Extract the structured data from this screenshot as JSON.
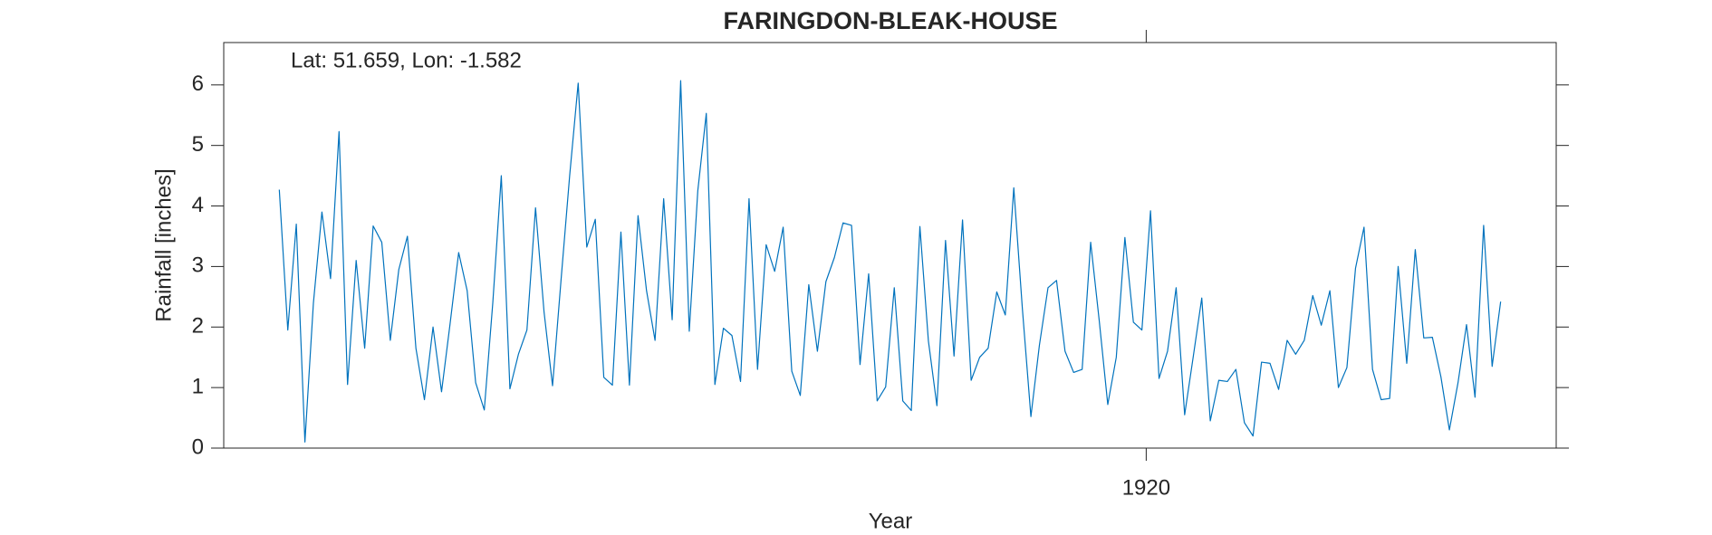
{
  "chart_data": {
    "type": "line",
    "title": "FARINGDON-BLEAK-HOUSE",
    "annotation": "Lat: 51.659, Lon: -1.582",
    "xlabel": "Year",
    "ylabel": "Rainfall [inches]",
    "x": [
      1911.542,
      1911.625,
      1911.708,
      1911.792,
      1911.875,
      1911.958,
      1912.042,
      1912.125,
      1912.208,
      1912.292,
      1912.375,
      1912.458,
      1912.542,
      1912.625,
      1912.708,
      1912.792,
      1912.875,
      1912.958,
      1913.042,
      1913.125,
      1913.208,
      1913.292,
      1913.375,
      1913.458,
      1913.542,
      1913.625,
      1913.708,
      1913.792,
      1913.875,
      1913.958,
      1914.042,
      1914.125,
      1914.208,
      1914.292,
      1914.375,
      1914.458,
      1914.542,
      1914.625,
      1914.708,
      1914.792,
      1914.875,
      1914.958,
      1915.042,
      1915.125,
      1915.208,
      1915.292,
      1915.375,
      1915.458,
      1915.542,
      1915.625,
      1915.708,
      1915.792,
      1915.875,
      1915.958,
      1916.042,
      1916.125,
      1916.208,
      1916.292,
      1916.375,
      1916.458,
      1916.542,
      1916.625,
      1916.708,
      1916.792,
      1916.875,
      1916.958,
      1917.042,
      1917.125,
      1917.208,
      1917.292,
      1917.375,
      1917.458,
      1917.542,
      1917.625,
      1917.708,
      1917.792,
      1917.875,
      1917.958,
      1918.042,
      1918.125,
      1918.208,
      1918.292,
      1918.375,
      1918.458,
      1918.542,
      1918.625,
      1918.708,
      1918.792,
      1918.875,
      1918.958,
      1919.042,
      1919.125,
      1919.208,
      1919.292,
      1919.375,
      1919.458,
      1919.542,
      1919.625,
      1919.708,
      1919.792,
      1919.875,
      1919.958,
      1920.042,
      1920.125,
      1920.208,
      1920.292,
      1920.375,
      1920.458,
      1920.542,
      1920.625,
      1920.708,
      1920.792,
      1920.875,
      1920.958,
      1921.042,
      1921.125,
      1921.208,
      1921.292,
      1921.375,
      1921.458,
      1921.542,
      1921.625,
      1921.708,
      1921.792,
      1921.875,
      1921.958,
      1922.042,
      1922.125,
      1922.208,
      1922.292,
      1922.375,
      1922.458,
      1922.542,
      1922.625,
      1922.708,
      1922.792,
      1922.875,
      1922.958,
      1923.042,
      1923.125,
      1923.208,
      1923.292,
      1923.375,
      1923.458
    ],
    "values": [
      4.27,
      1.95,
      3.7,
      0.1,
      2.4,
      3.9,
      2.8,
      5.23,
      1.05,
      3.1,
      1.65,
      3.67,
      3.4,
      1.78,
      2.95,
      3.5,
      1.65,
      0.8,
      2.0,
      0.93,
      2.05,
      3.23,
      2.6,
      1.08,
      0.63,
      2.4,
      4.5,
      0.98,
      1.55,
      1.95,
      3.97,
      2.25,
      1.03,
      2.8,
      4.5,
      6.03,
      3.32,
      3.78,
      1.17,
      1.04,
      3.57,
      1.04,
      3.84,
      2.6,
      1.78,
      4.12,
      2.12,
      6.07,
      1.93,
      4.25,
      5.53,
      1.05,
      1.98,
      1.86,
      1.1,
      4.12,
      1.3,
      3.36,
      2.92,
      3.65,
      1.27,
      0.87,
      2.7,
      1.6,
      2.75,
      3.15,
      3.72,
      3.68,
      1.38,
      2.88,
      0.78,
      1.01,
      2.65,
      0.78,
      0.62,
      3.66,
      1.77,
      0.7,
      3.43,
      1.52,
      3.77,
      1.12,
      1.5,
      1.65,
      2.58,
      2.2,
      4.3,
      2.3,
      0.52,
      1.7,
      2.65,
      2.77,
      1.6,
      1.25,
      1.3,
      3.4,
      2.1,
      0.72,
      1.5,
      3.48,
      2.08,
      1.95,
      3.92,
      1.15,
      1.6,
      2.65,
      0.55,
      1.5,
      2.48,
      0.45,
      1.12,
      1.1,
      1.3,
      0.42,
      0.2,
      1.42,
      1.4,
      0.97,
      1.78,
      1.55,
      1.78,
      2.52,
      2.03,
      2.6,
      1.0,
      1.33,
      2.97,
      3.65,
      1.3,
      0.8,
      0.82,
      3.0,
      1.4,
      3.28,
      1.82,
      1.83,
      1.18,
      0.3,
      1.08,
      2.04,
      0.84,
      3.68,
      1.35,
      2.42
    ],
    "color": "#0072bd",
    "xlim": [
      1911,
      1924
    ],
    "ylim": [
      0,
      6.7
    ],
    "xticks": [
      1920
    ],
    "yticks": [
      0,
      1,
      2,
      3,
      4,
      5,
      6
    ]
  }
}
